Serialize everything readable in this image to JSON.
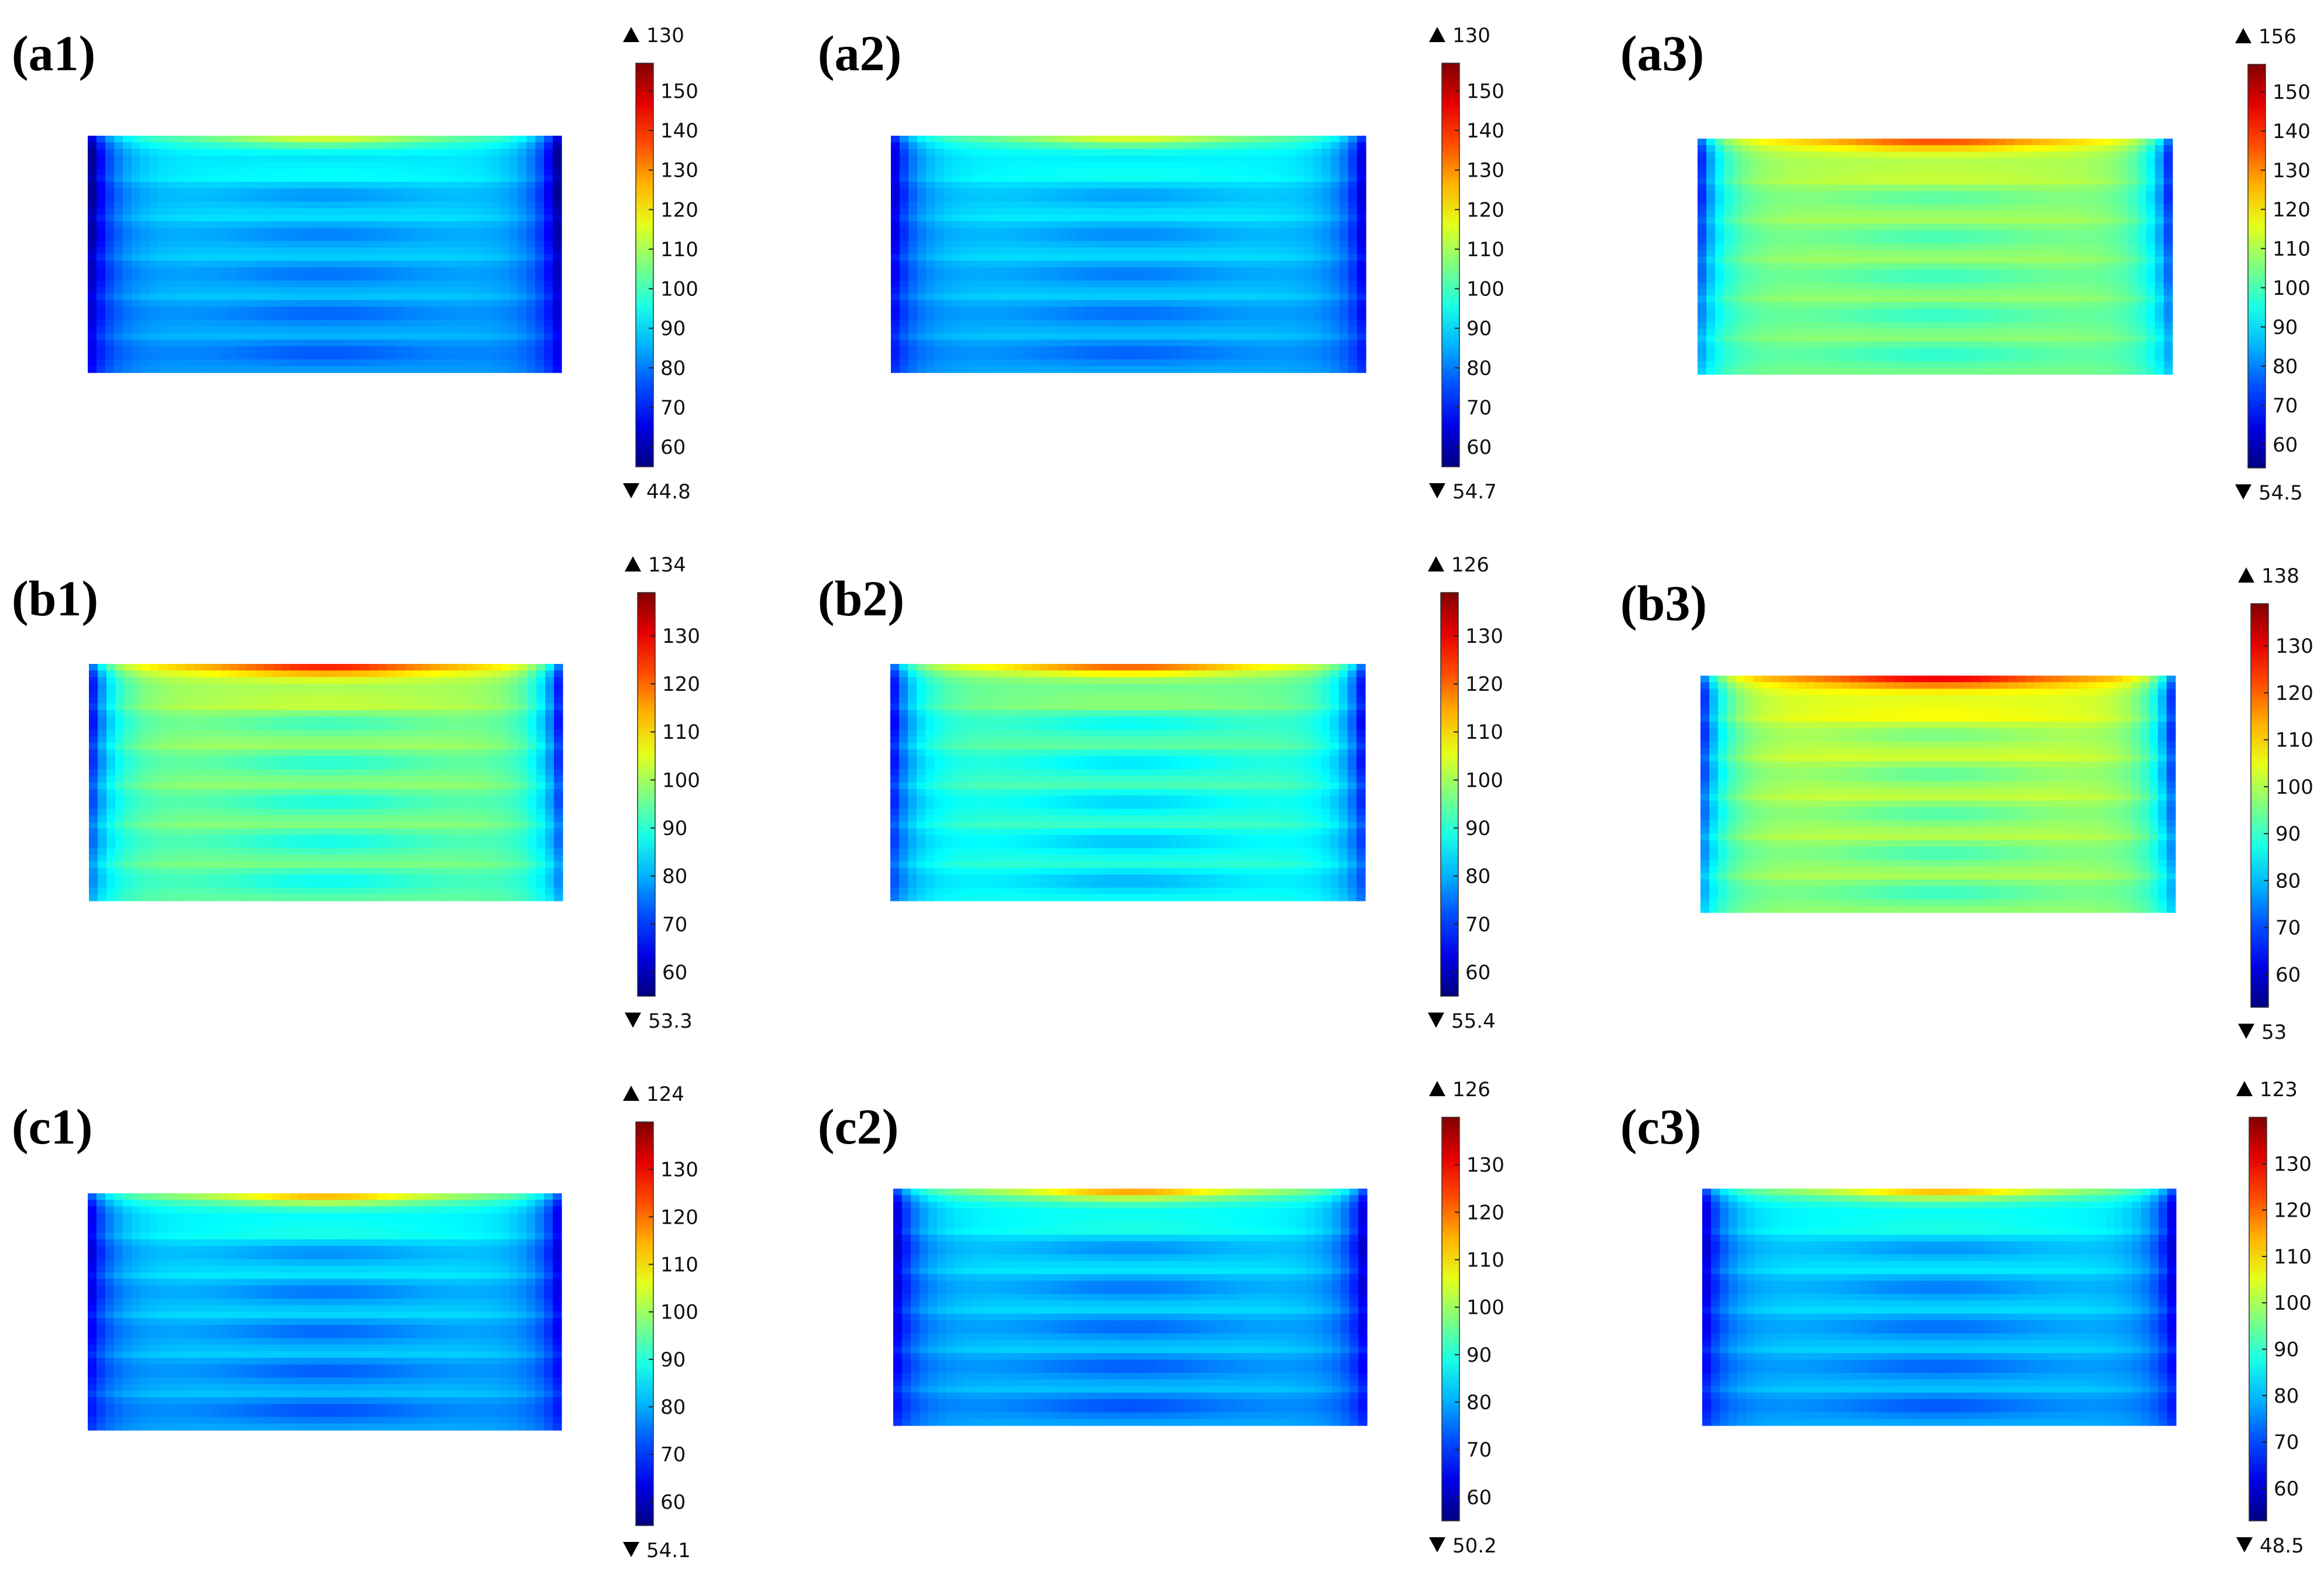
{
  "chart_data": [
    {
      "type": "heatmap",
      "panel": "(a1)",
      "colorbar": {
        "max_label": "130",
        "min_label": "44.8",
        "range": [
          55,
          157
        ],
        "ticks": [
          60,
          70,
          80,
          90,
          100,
          110,
          120,
          130,
          140,
          150
        ]
      },
      "field": {
        "top_peak": 117,
        "edge_value": 48,
        "base": 92,
        "bottom_value": 84,
        "band_count": 6
      }
    },
    {
      "type": "heatmap",
      "panel": "(a2)",
      "colorbar": {
        "max_label": "130",
        "min_label": "54.7",
        "range": [
          55,
          157
        ],
        "ticks": [
          60,
          70,
          80,
          90,
          100,
          110,
          120,
          130,
          140,
          150
        ]
      },
      "field": {
        "top_peak": 118,
        "edge_value": 58,
        "base": 93,
        "bottom_value": 85,
        "band_count": 6
      }
    },
    {
      "type": "heatmap",
      "panel": "(a3)",
      "colorbar": {
        "max_label": "156",
        "min_label": "54.5",
        "range": [
          54,
          157
        ],
        "ticks": [
          60,
          70,
          80,
          90,
          100,
          110,
          120,
          130,
          140,
          150
        ]
      },
      "field": {
        "top_peak": 140,
        "edge_value": 60,
        "base": 110,
        "bottom_value": 105,
        "band_count": 6
      }
    },
    {
      "type": "heatmap",
      "panel": "(b1)",
      "colorbar": {
        "max_label": "134",
        "min_label": "53.3",
        "range": [
          55,
          139
        ],
        "ticks": [
          60,
          70,
          80,
          90,
          100,
          110,
          120,
          130
        ]
      },
      "field": {
        "top_peak": 130,
        "edge_value": 58,
        "base": 100,
        "bottom_value": 95,
        "band_count": 6
      }
    },
    {
      "type": "heatmap",
      "panel": "(b2)",
      "colorbar": {
        "max_label": "126",
        "min_label": "55.4",
        "range": [
          55,
          139
        ],
        "ticks": [
          60,
          70,
          80,
          90,
          100,
          110,
          120,
          130
        ]
      },
      "field": {
        "top_peak": 124,
        "edge_value": 59,
        "base": 96,
        "bottom_value": 88,
        "band_count": 6
      }
    },
    {
      "type": "heatmap",
      "panel": "(b3)",
      "colorbar": {
        "max_label": "138",
        "min_label": "53",
        "range": [
          53,
          139
        ],
        "ticks": [
          60,
          70,
          80,
          90,
          100,
          110,
          120,
          130
        ]
      },
      "field": {
        "top_peak": 133,
        "edge_value": 58,
        "base": 104,
        "bottom_value": 98,
        "band_count": 6
      }
    },
    {
      "type": "heatmap",
      "panel": "(c1)",
      "colorbar": {
        "max_label": "124",
        "min_label": "54.1",
        "range": [
          55,
          140
        ],
        "ticks": [
          60,
          70,
          80,
          90,
          100,
          110,
          120,
          130
        ]
      },
      "field": {
        "top_peak": 118,
        "edge_value": 58,
        "base": 86,
        "bottom_value": 80,
        "band_count": 6
      }
    },
    {
      "type": "heatmap",
      "panel": "(c2)",
      "colorbar": {
        "max_label": "126",
        "min_label": "50.2",
        "range": [
          55,
          140
        ],
        "ticks": [
          60,
          70,
          80,
          90,
          100,
          110,
          120,
          130
        ]
      },
      "field": {
        "top_peak": 120,
        "edge_value": 56,
        "base": 86,
        "bottom_value": 80,
        "band_count": 6
      }
    },
    {
      "type": "heatmap",
      "panel": "(c3)",
      "colorbar": {
        "max_label": "123",
        "min_label": "48.5",
        "range": [
          53,
          140
        ],
        "ticks": [
          60,
          70,
          80,
          90,
          100,
          110,
          120,
          130
        ]
      },
      "field": {
        "top_peak": 117,
        "edge_value": 55,
        "base": 85,
        "bottom_value": 79,
        "band_count": 6
      }
    }
  ]
}
